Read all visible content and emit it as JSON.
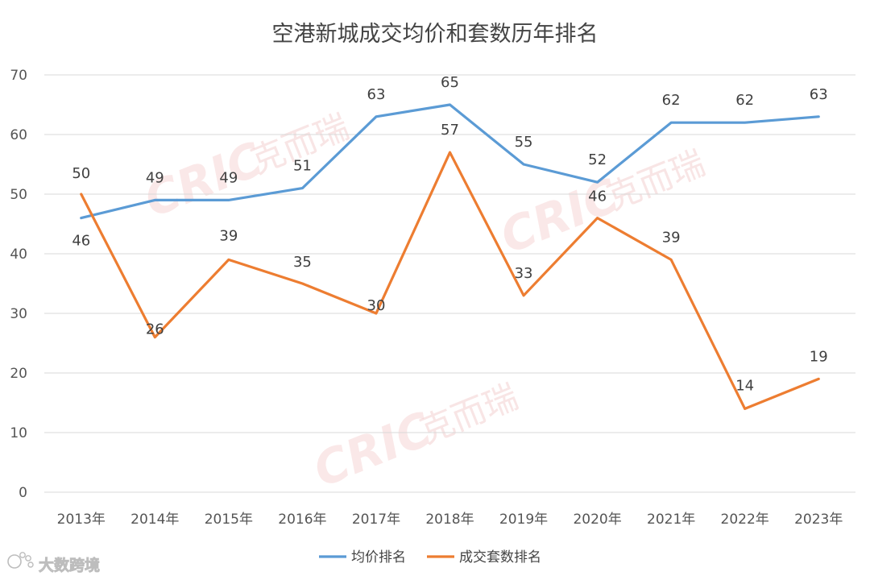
{
  "chart_data": {
    "type": "line",
    "title": "空港新城成交均价和套数历年排名",
    "categories": [
      "2013年",
      "2014年",
      "2015年",
      "2016年",
      "2017年",
      "2018年",
      "2019年",
      "2020年",
      "2021年",
      "2022年",
      "2023年"
    ],
    "series": [
      {
        "name": "均价排名",
        "color": "#5b9bd5",
        "values": [
          46,
          49,
          49,
          51,
          63,
          65,
          55,
          52,
          62,
          62,
          63
        ]
      },
      {
        "name": "成交套数排名",
        "color": "#ed7d31",
        "values": [
          50,
          26,
          39,
          35,
          30,
          57,
          33,
          46,
          39,
          14,
          19
        ]
      }
    ],
    "ylim": [
      0,
      70
    ],
    "yticks": [
      0,
      10,
      20,
      30,
      40,
      50,
      60,
      70
    ],
    "grid": true,
    "legend_position": "bottom-center"
  },
  "watermark": {
    "brand": "CRIC",
    "brand_cn": "克而瑞",
    "color": "#f6d6d6"
  },
  "source_logo": {
    "text": "大数跨境",
    "icon": "paw-logo-icon"
  }
}
